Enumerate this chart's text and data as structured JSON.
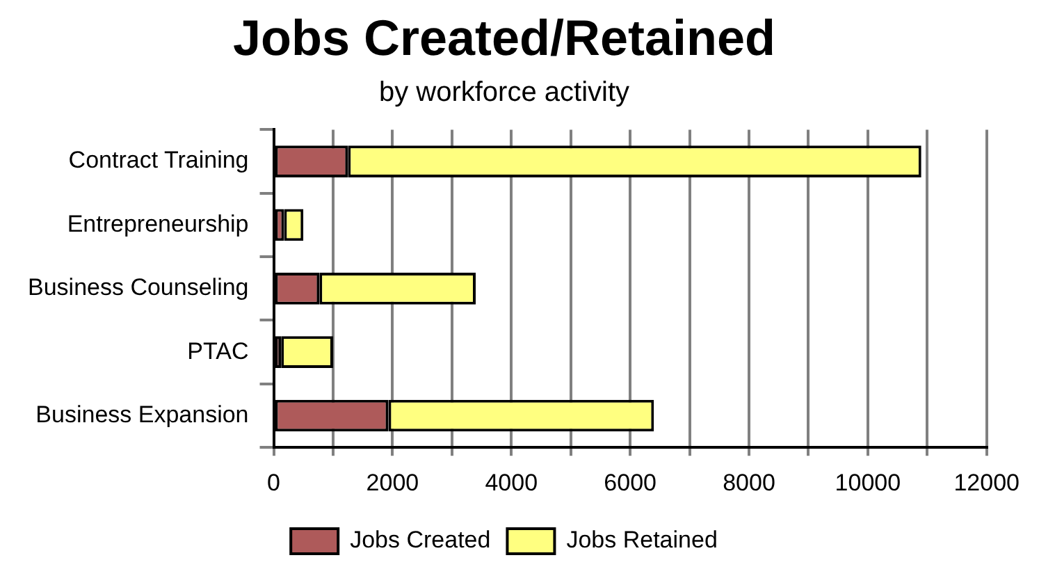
{
  "chart_data": {
    "type": "bar",
    "orientation": "horizontal",
    "stacked": true,
    "title": "Jobs Created/Retained",
    "subtitle": "by workforce activity",
    "categories": [
      "Contract Training",
      "Entrepreneurship",
      "Business Counseling",
      "PTAC",
      "Business Expansion"
    ],
    "series": [
      {
        "name": "Jobs Created",
        "color": "#ae5a5a",
        "values": [
          1250,
          175,
          770,
          125,
          1930
        ]
      },
      {
        "name": "Jobs Retained",
        "color": "#ffff80",
        "values": [
          9650,
          325,
          2630,
          875,
          4470
        ]
      }
    ],
    "xlim": [
      0,
      12000
    ],
    "xticks": [
      0,
      {
        "value": 1000,
        "label": null
      },
      2000,
      {
        "value": 3000,
        "label": null
      },
      4000,
      {
        "value": 5000,
        "label": null
      },
      6000,
      {
        "value": 7000,
        "label": null
      },
      8000,
      {
        "value": 9000,
        "label": null
      },
      10000,
      {
        "value": 11000,
        "label": null
      },
      12000
    ],
    "grid": "x",
    "legend": "bottom"
  }
}
